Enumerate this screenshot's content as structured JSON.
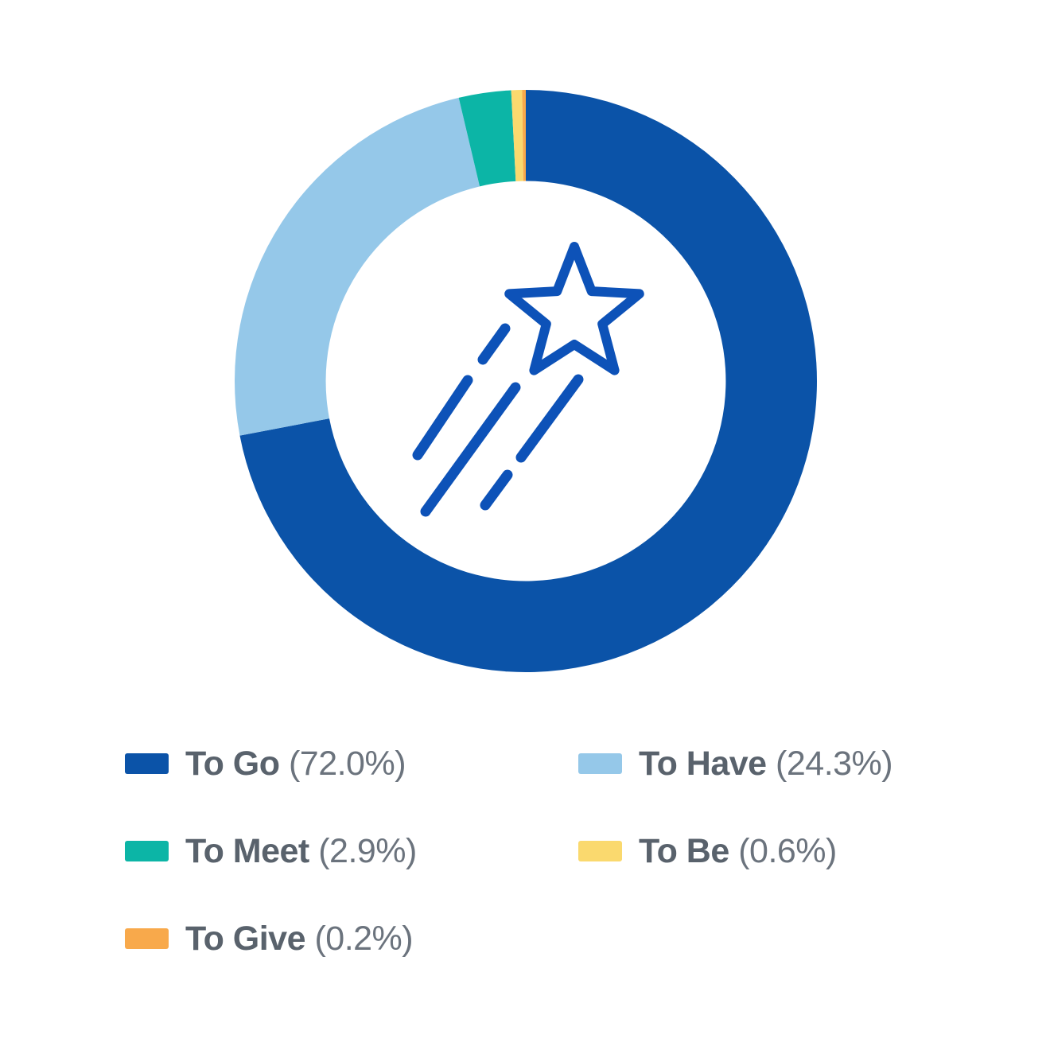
{
  "background_color": "#FFFFFF",
  "chart_data": {
    "type": "pie",
    "subtype": "donut",
    "title": "",
    "categories": [
      "To Go",
      "To Have",
      "To Meet",
      "To Be",
      "To Give"
    ],
    "values": [
      72.0,
      24.3,
      2.9,
      0.6,
      0.2
    ],
    "value_labels": [
      "(72.0%)",
      "(24.3%)",
      "(2.9%)",
      "(0.6%)",
      "(0.2%)"
    ],
    "colors": [
      "#0B53A8",
      "#95C8E9",
      "#0CB5A6",
      "#FAD96E",
      "#F8A94B"
    ],
    "start_angle_deg_from_top": 0,
    "direction": "clockwise",
    "inner_radius_ratio": 0.687,
    "grid": false,
    "legend_position": "bottom",
    "center_icon": "shooting-star"
  },
  "legend": {
    "items": [
      {
        "label": "To Go",
        "value_text": "(72.0%)",
        "color": "#0B53A8"
      },
      {
        "label": "To Have",
        "value_text": "(24.3%)",
        "color": "#95C8E9"
      },
      {
        "label": "To Meet",
        "value_text": "(2.9%)",
        "color": "#0CB5A6"
      },
      {
        "label": "To Be",
        "value_text": "(0.6%)",
        "color": "#FAD96E"
      },
      {
        "label": "To Give",
        "value_text": "(0.2%)",
        "color": "#F8A94B"
      }
    ],
    "label_color": "#59626C",
    "value_color": "#6B737D"
  },
  "icon": {
    "name": "shooting-star",
    "color": "#0D52B8"
  }
}
